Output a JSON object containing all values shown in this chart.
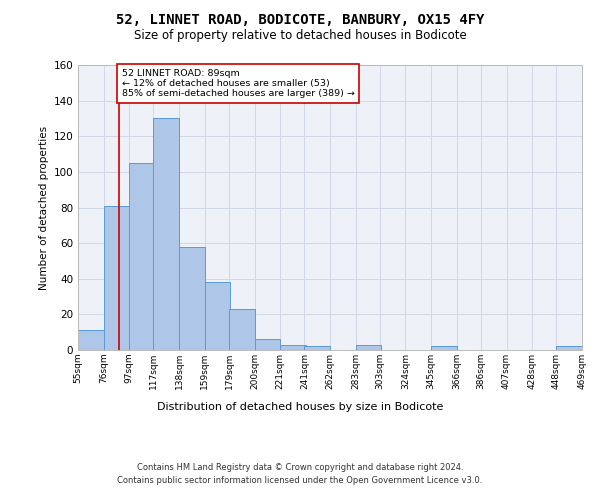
{
  "title": "52, LINNET ROAD, BODICOTE, BANBURY, OX15 4FY",
  "subtitle": "Size of property relative to detached houses in Bodicote",
  "xlabel_bottom": "Distribution of detached houses by size in Bodicote",
  "ylabel": "Number of detached properties",
  "bar_bins": [
    55,
    76,
    97,
    117,
    138,
    159,
    179,
    200,
    221,
    241,
    262,
    283,
    303,
    324,
    345,
    366,
    386,
    407,
    428,
    448,
    469
  ],
  "bar_heights": [
    11,
    81,
    105,
    130,
    58,
    38,
    23,
    6,
    3,
    2,
    0,
    3,
    0,
    0,
    2,
    0,
    0,
    0,
    0,
    2
  ],
  "bar_color": "#aec6e8",
  "bar_edge_color": "#5b9bd5",
  "grid_color": "#d0d8e8",
  "background_color": "#eef2f8",
  "vline_x": 89,
  "vline_color": "#cc0000",
  "annotation_line1": "52 LINNET ROAD: 89sqm",
  "annotation_line2": "← 12% of detached houses are smaller (53)",
  "annotation_line3": "85% of semi-detached houses are larger (389) →",
  "annotation_box_color": "#ffffff",
  "annotation_box_edge": "#cc0000",
  "ylim": [
    0,
    160
  ],
  "yticks": [
    0,
    20,
    40,
    60,
    80,
    100,
    120,
    140,
    160
  ],
  "tick_labels": [
    "55sqm",
    "76sqm",
    "97sqm",
    "117sqm",
    "138sqm",
    "159sqm",
    "179sqm",
    "200sqm",
    "221sqm",
    "241sqm",
    "262sqm",
    "283sqm",
    "303sqm",
    "324sqm",
    "345sqm",
    "366sqm",
    "386sqm",
    "407sqm",
    "428sqm",
    "448sqm",
    "469sqm"
  ],
  "footer_line1": "Contains HM Land Registry data © Crown copyright and database right 2024.",
  "footer_line2": "Contains public sector information licensed under the Open Government Licence v3.0."
}
